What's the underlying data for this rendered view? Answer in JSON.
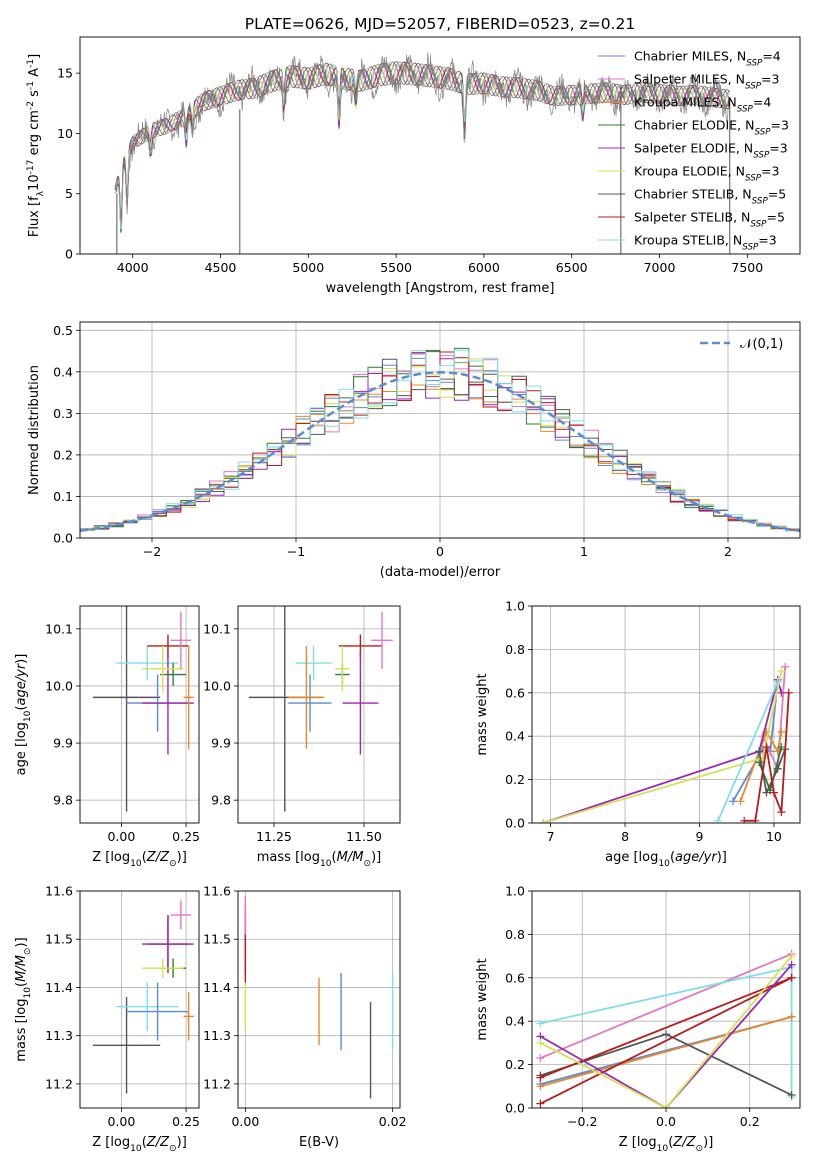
{
  "title": "PLATE=0626, MJD=52057, FIBERID=0523, z=0.21",
  "chart_data": [
    {
      "id": "spectrum",
      "type": "line",
      "xlabel": "wavelength [Angstrom, rest frame]",
      "ylabel": "Flux [f$_\\lambda$10$^{-17}$ erg cm$^{-2}$ s$^{-1}$ A$^{-1}$]",
      "xlim": [
        3700,
        7800
      ],
      "ylim": [
        0,
        18
      ],
      "xticks": [
        "4000",
        "4500",
        "5000",
        "5500",
        "6000",
        "6500",
        "7000",
        "7500"
      ],
      "yticks": [
        "0",
        "5",
        "10",
        "15"
      ],
      "legend_position": "top-right",
      "continuum": {
        "x": [
          3900,
          3950,
          4000,
          4100,
          4200,
          4300,
          4400,
          4500,
          4600,
          4700,
          4800,
          4900,
          5000,
          5100,
          5200,
          5300,
          5400,
          5500,
          5600,
          5700,
          5800,
          5900,
          6000,
          6100,
          6200,
          6300,
          6400,
          6500,
          6600,
          6700,
          6800,
          6900,
          7000,
          7100,
          7200,
          7300,
          7400
        ],
        "y": [
          5.5,
          8.0,
          9.5,
          10.5,
          11.0,
          11.8,
          13.0,
          13.5,
          14.0,
          14.2,
          14.8,
          15.2,
          15.0,
          15.4,
          15.0,
          14.8,
          15.3,
          15.5,
          15.4,
          15.2,
          15.0,
          14.5,
          14.6,
          14.3,
          14.2,
          14.0,
          13.5,
          13.6,
          13.7,
          13.8,
          13.6,
          13.8,
          13.7,
          13.5,
          13.6,
          13.4,
          13.2
        ]
      },
      "series": [
        {
          "name": "Chabrier MILES, N$_{SSP}$=4",
          "color": "#5b8bd5"
        },
        {
          "name": "Salpeter MILES, N$_{SSP}$=3",
          "color": "#e377c2"
        },
        {
          "name": "Kroupa MILES, N$_{SSP}$=4",
          "color": "#e6892e"
        },
        {
          "name": "Chabrier ELODIE, N$_{SSP}$=3",
          "color": "#2e7d32"
        },
        {
          "name": "Salpeter ELODIE, N$_{SSP}$=3",
          "color": "#9c27b0"
        },
        {
          "name": "Kroupa ELODIE, N$_{SSP}$=3",
          "color": "#d4e157"
        },
        {
          "name": "Chabrier STELIB, N$_{SSP}$=5",
          "color": "#555555"
        },
        {
          "name": "Salpeter STELIB, N$_{SSP}$=5",
          "color": "#b71c1c"
        },
        {
          "name": "Kroupa STELIB, N$_{SSP}$=3",
          "color": "#80deea"
        }
      ],
      "data_series_color": "#808080"
    },
    {
      "id": "residuals",
      "type": "histogram",
      "xlabel": "(data-model)/error",
      "ylabel": "Normed distribution",
      "xlim": [
        -2.5,
        2.5
      ],
      "ylim": [
        0,
        0.52
      ],
      "xticks": [
        "−2",
        "−1",
        "0",
        "1",
        "2"
      ],
      "yticks": [
        "0.0",
        "0.1",
        "0.2",
        "0.3",
        "0.4",
        "0.5"
      ],
      "bin_width": 0.1,
      "reference_curve": {
        "name": "$\\mathcal{N}(0,1)$",
        "color": "#5b8bd5",
        "style": "dashed"
      },
      "legend_position": "top-right"
    },
    {
      "id": "age-vs-Z",
      "type": "scatter",
      "xlabel": "Z [log$_{10}$($Z/Z_\\odot$)]",
      "ylabel": "age  [log$_{10}$($age/yr$)]",
      "xlim": [
        -0.16,
        0.3
      ],
      "ylim": [
        9.76,
        10.14
      ],
      "xticks": [
        "0.00",
        "0.25"
      ],
      "yticks": [
        "9.8",
        "9.9",
        "10.0",
        "10.1"
      ],
      "points": [
        {
          "x": 0.02,
          "y": 9.98,
          "xerr": 0.13,
          "yerr": 0.2,
          "color": "#555555"
        },
        {
          "x": 0.1,
          "y": 10.04,
          "xerr": 0.12,
          "yerr": 0.03,
          "color": "#80deea"
        },
        {
          "x": 0.14,
          "y": 9.97,
          "xerr": 0.12,
          "yerr": 0.05,
          "color": "#5b8bd5"
        },
        {
          "x": 0.18,
          "y": 10.07,
          "xerr": 0.08,
          "yerr": 0.02,
          "color": "#b71c1c"
        },
        {
          "x": 0.18,
          "y": 9.97,
          "xerr": 0.1,
          "yerr": 0.09,
          "color": "#9c27b0"
        },
        {
          "x": 0.2,
          "y": 10.02,
          "xerr": 0.05,
          "yerr": 0.02,
          "color": "#2e7d32"
        },
        {
          "x": 0.16,
          "y": 10.03,
          "xerr": 0.08,
          "yerr": 0.04,
          "color": "#d4e157"
        },
        {
          "x": 0.23,
          "y": 10.08,
          "xerr": 0.04,
          "yerr": 0.05,
          "color": "#e377c2"
        },
        {
          "x": 0.26,
          "y": 9.98,
          "xerr": 0.02,
          "yerr": 0.09,
          "color": "#e6892e"
        }
      ]
    },
    {
      "id": "age-vs-mass",
      "type": "scatter",
      "xlabel": "mass [log$_{10}$($M/M_\\odot$)]",
      "ylabel": "",
      "xlim": [
        11.15,
        11.6
      ],
      "ylim": [
        9.76,
        10.14
      ],
      "xticks": [
        "11.25",
        "11.50"
      ],
      "yticks": [
        "9.8",
        "9.9",
        "10.0",
        "10.1"
      ],
      "points": [
        {
          "x": 11.28,
          "y": 9.98,
          "xerr": 0.1,
          "yerr": 0.2,
          "color": "#555555"
        },
        {
          "x": 11.36,
          "y": 10.04,
          "xerr": 0.05,
          "yerr": 0.03,
          "color": "#80deea"
        },
        {
          "x": 11.35,
          "y": 9.97,
          "xerr": 0.06,
          "yerr": 0.05,
          "color": "#5b8bd5"
        },
        {
          "x": 11.49,
          "y": 10.07,
          "xerr": 0.06,
          "yerr": 0.02,
          "color": "#b71c1c"
        },
        {
          "x": 11.49,
          "y": 9.97,
          "xerr": 0.05,
          "yerr": 0.09,
          "color": "#9c27b0"
        },
        {
          "x": 11.44,
          "y": 10.02,
          "xerr": 0.02,
          "yerr": 0.02,
          "color": "#2e7d32"
        },
        {
          "x": 11.44,
          "y": 10.03,
          "xerr": 0.02,
          "yerr": 0.04,
          "color": "#d4e157"
        },
        {
          "x": 11.55,
          "y": 10.08,
          "xerr": 0.03,
          "yerr": 0.05,
          "color": "#e377c2"
        },
        {
          "x": 11.34,
          "y": 9.98,
          "xerr": 0.05,
          "yerr": 0.09,
          "color": "#e6892e"
        }
      ]
    },
    {
      "id": "weight-vs-age",
      "type": "line",
      "xlabel": "age  [log$_{10}$($age/yr$)]",
      "ylabel": "mass weight",
      "xlim": [
        6.75,
        10.35
      ],
      "ylim": [
        0,
        1.0
      ],
      "xticks": [
        "7",
        "8",
        "9",
        "10"
      ],
      "yticks": [
        "0.0",
        "0.2",
        "0.4",
        "0.6",
        "0.8",
        "1.0"
      ],
      "series": [
        {
          "color": "#5b8bd5",
          "x": [
            9.45,
            9.85,
            9.95,
            10.05
          ],
          "y": [
            0.1,
            0.34,
            0.33,
            0.65
          ]
        },
        {
          "color": "#e377c2",
          "x": [
            9.85,
            10.05,
            10.15
          ],
          "y": [
            0.4,
            0.25,
            0.72
          ]
        },
        {
          "color": "#e6892e",
          "x": [
            9.55,
            9.9,
            10.05,
            10.1
          ],
          "y": [
            0.1,
            0.42,
            0.33,
            0.42
          ]
        },
        {
          "color": "#2e7d32",
          "x": [
            9.8,
            9.95,
            10.1
          ],
          "y": [
            0.28,
            0.15,
            0.35
          ]
        },
        {
          "color": "#9c27b0",
          "x": [
            6.9,
            9.8,
            10.05,
            10.1
          ],
          "y": [
            0.0,
            0.33,
            0.66,
            0.6
          ]
        },
        {
          "color": "#d4e157",
          "x": [
            6.9,
            9.85,
            10.1
          ],
          "y": [
            0.0,
            0.3,
            0.7
          ]
        },
        {
          "color": "#555555",
          "x": [
            9.8,
            9.9,
            10.05,
            10.15
          ],
          "y": [
            0.33,
            0.14,
            0.25,
            0.34
          ]
        },
        {
          "color": "#b71c1c",
          "x": [
            9.6,
            9.75,
            9.9,
            10.0,
            10.1,
            10.2
          ],
          "y": [
            0.01,
            0.01,
            0.35,
            0.14,
            0.05,
            0.6
          ]
        },
        {
          "color": "#80deea",
          "x": [
            9.25,
            10.05
          ],
          "y": [
            0.01,
            0.65
          ]
        }
      ]
    },
    {
      "id": "mass-vs-Z",
      "type": "scatter",
      "xlabel": "Z [log$_{10}$($Z/Z_\\odot$)]",
      "ylabel": "mass [log$_{10}$($M/M_\\odot$)]",
      "xlim": [
        -0.16,
        0.3
      ],
      "ylim": [
        11.15,
        11.6
      ],
      "xticks": [
        "0.00",
        "0.25"
      ],
      "yticks": [
        "11.2",
        "11.3",
        "11.4",
        "11.5",
        "11.6"
      ],
      "points": [
        {
          "x": 0.02,
          "y": 11.28,
          "xerr": 0.13,
          "yerr": 0.1,
          "color": "#555555"
        },
        {
          "x": 0.1,
          "y": 11.36,
          "xerr": 0.12,
          "yerr": 0.05,
          "color": "#80deea"
        },
        {
          "x": 0.14,
          "y": 11.35,
          "xerr": 0.12,
          "yerr": 0.06,
          "color": "#5b8bd5"
        },
        {
          "x": 0.18,
          "y": 11.49,
          "xerr": 0.08,
          "yerr": 0.06,
          "color": "#b71c1c"
        },
        {
          "x": 0.18,
          "y": 11.49,
          "xerr": 0.1,
          "yerr": 0.05,
          "color": "#9c27b0"
        },
        {
          "x": 0.2,
          "y": 11.44,
          "xerr": 0.05,
          "yerr": 0.02,
          "color": "#2e7d32"
        },
        {
          "x": 0.16,
          "y": 11.44,
          "xerr": 0.08,
          "yerr": 0.02,
          "color": "#d4e157"
        },
        {
          "x": 0.23,
          "y": 11.55,
          "xerr": 0.04,
          "yerr": 0.03,
          "color": "#e377c2"
        },
        {
          "x": 0.26,
          "y": 11.34,
          "xerr": 0.02,
          "yerr": 0.05,
          "color": "#e6892e"
        }
      ]
    },
    {
      "id": "mass-vs-EBV",
      "type": "scatter",
      "xlabel": "E(B-V)",
      "ylabel": "",
      "xlim": [
        -0.001,
        0.021
      ],
      "ylim": [
        11.15,
        11.6
      ],
      "xticks": [
        "0.00",
        "0.02"
      ],
      "yticks": [
        "11.2",
        "11.3",
        "11.4",
        "11.5",
        "11.6"
      ],
      "points": [
        {
          "x": 0.0,
          "y": 11.49,
          "xerr": 0.0,
          "yerr": 0.06,
          "color": "#9c27b0"
        },
        {
          "x": 0.0,
          "y": 11.49,
          "xerr": 0.0,
          "yerr": 0.08,
          "color": "#b71c1c"
        },
        {
          "x": 0.0,
          "y": 11.55,
          "xerr": 0.0,
          "yerr": 0.04,
          "color": "#e377c2"
        },
        {
          "x": 0.0,
          "y": 11.36,
          "xerr": 0.0,
          "yerr": 0.05,
          "color": "#d4e157"
        },
        {
          "x": 0.01,
          "y": 11.35,
          "xerr": 0.0,
          "yerr": 0.07,
          "color": "#e6892e"
        },
        {
          "x": 0.013,
          "y": 11.35,
          "xerr": 0.0,
          "yerr": 0.08,
          "color": "#5b8bd5"
        },
        {
          "x": 0.017,
          "y": 11.27,
          "xerr": 0.0,
          "yerr": 0.1,
          "color": "#555555"
        },
        {
          "x": 0.02,
          "y": 11.35,
          "xerr": 0.0,
          "yerr": 0.08,
          "color": "#80deea"
        }
      ]
    },
    {
      "id": "weight-vs-Z",
      "type": "line",
      "xlabel": "Z [log$_{10}$($Z/Z_\\odot$)]",
      "ylabel": "mass weight",
      "xlim": [
        -0.32,
        0.32
      ],
      "ylim": [
        0,
        1.0
      ],
      "xticks": [
        "−0.2",
        "0.0",
        "0.2"
      ],
      "yticks": [
        "0.0",
        "0.2",
        "0.4",
        "0.6",
        "0.8",
        "1.0"
      ],
      "series": [
        {
          "color": "#e377c2",
          "x": [
            -0.3,
            0.3
          ],
          "y": [
            0.23,
            0.71
          ]
        },
        {
          "color": "#80deea",
          "x": [
            -0.3,
            0.3,
            0.3
          ],
          "y": [
            0.39,
            0.65,
            0.05
          ]
        },
        {
          "color": "#5b8bd5",
          "x": [
            -0.3,
            0.3
          ],
          "y": [
            0.11,
            0.42
          ]
        },
        {
          "color": "#e6892e",
          "x": [
            -0.3,
            0.3
          ],
          "y": [
            0.1,
            0.42
          ]
        },
        {
          "color": "#555555",
          "x": [
            -0.3,
            0.0,
            0.3
          ],
          "y": [
            0.15,
            0.34,
            0.06
          ]
        },
        {
          "color": "#b71c1c",
          "x": [
            -0.3,
            0.3,
            -0.3,
            0.3
          ],
          "y": [
            0.02,
            0.6,
            0.14,
            0.6
          ]
        },
        {
          "color": "#9c27b0",
          "x": [
            -0.3,
            0.0,
            0.3
          ],
          "y": [
            0.33,
            0.0,
            0.66
          ]
        },
        {
          "color": "#d4e157",
          "x": [
            -0.3,
            0.0,
            0.3
          ],
          "y": [
            0.3,
            0.0,
            0.7
          ]
        }
      ]
    }
  ]
}
